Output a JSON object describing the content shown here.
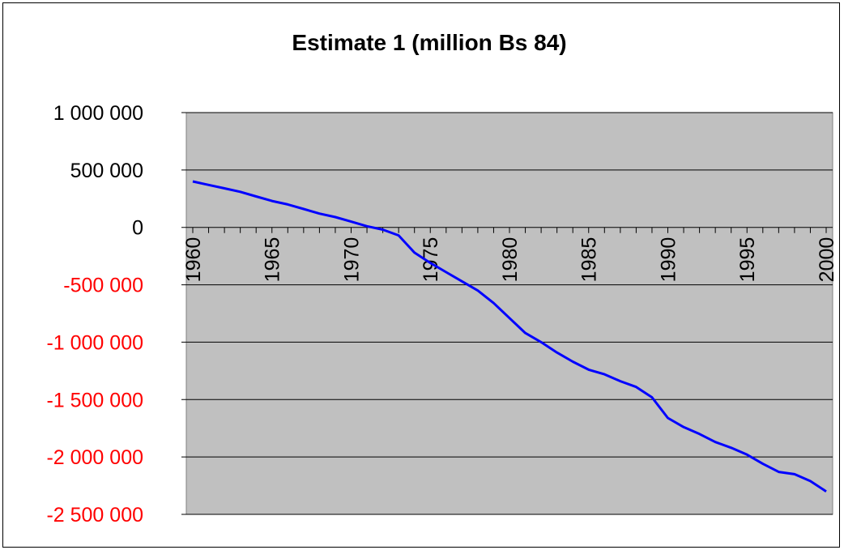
{
  "chart_data": {
    "type": "line",
    "title": "Estimate 1 (million Bs 84)",
    "xlabel": "",
    "ylabel": "",
    "xlim": [
      1960,
      2000
    ],
    "ylim": [
      -2500000,
      1000000
    ],
    "grid": true,
    "plot_background": "#c0c0c0",
    "x_tick_labels": [
      "1960",
      "1965",
      "1970",
      "1975",
      "1980",
      "1985",
      "1990",
      "1995",
      "2000"
    ],
    "y_tick_labels": [
      "1 000 000",
      "500 000",
      "0",
      "-500 000",
      "-1 000 000",
      "-1 500 000",
      "-2 000 000",
      "-2 500 000"
    ],
    "colors": {
      "line": "#0000ff",
      "positive_label": "#000000",
      "negative_label": "#ff0000",
      "gridline": "#000000"
    },
    "series": [
      {
        "x": [
          1960,
          1961,
          1962,
          1963,
          1964,
          1965,
          1966,
          1967,
          1968,
          1969,
          1970,
          1971,
          1972,
          1973,
          1974,
          1975,
          1976,
          1977,
          1978,
          1979,
          1980,
          1981,
          1982,
          1983,
          1984,
          1985,
          1986,
          1987,
          1988,
          1989,
          1990,
          1991,
          1992,
          1993,
          1994,
          1995,
          1996,
          1997,
          1998,
          1999,
          2000
        ],
        "values": [
          400000,
          370000,
          340000,
          310000,
          270000,
          230000,
          200000,
          160000,
          120000,
          90000,
          50000,
          10000,
          -20000,
          -70000,
          -220000,
          -310000,
          -390000,
          -470000,
          -550000,
          -660000,
          -790000,
          -920000,
          -1000000,
          -1090000,
          -1170000,
          -1240000,
          -1280000,
          -1340000,
          -1390000,
          -1480000,
          -1660000,
          -1740000,
          -1800000,
          -1870000,
          -1920000,
          -1980000,
          -2060000,
          -2130000,
          -2150000,
          -2210000,
          -2300000
        ]
      }
    ]
  }
}
